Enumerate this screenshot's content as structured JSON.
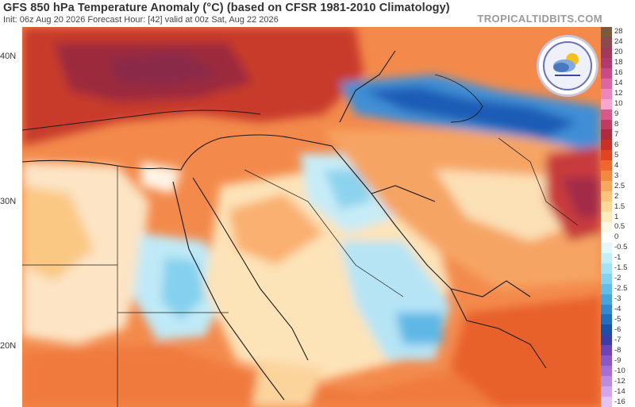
{
  "header": {
    "title": "GFS 850 hPa Temperature Anomaly (°C) (based on CFSR 1981-2010 Climatology)",
    "subtitle": "Init: 06z Aug 20 2026   Forecast Hour: [42]   valid at 00z Sat, Aug 22 2026",
    "brand": "TROPICALTIDBITS.COM"
  },
  "lat_labels": [
    "40N",
    "30N",
    "20N"
  ],
  "colorbar": {
    "items": [
      {
        "label": "28",
        "color": "#7a5a3c"
      },
      {
        "label": "24",
        "color": "#8a4a50"
      },
      {
        "label": "20",
        "color": "#9e3a5c"
      },
      {
        "label": "18",
        "color": "#b03a70"
      },
      {
        "label": "16",
        "color": "#c94a86"
      },
      {
        "label": "14",
        "color": "#dc66a0"
      },
      {
        "label": "12",
        "color": "#ef86bb"
      },
      {
        "label": "10",
        "color": "#f6a6cf"
      },
      {
        "label": "9",
        "color": "#d85a88"
      },
      {
        "label": "8",
        "color": "#c23a5e"
      },
      {
        "label": "7",
        "color": "#b02a3e"
      },
      {
        "label": "6",
        "color": "#c83028"
      },
      {
        "label": "5",
        "color": "#e04420"
      },
      {
        "label": "4",
        "color": "#f0662c"
      },
      {
        "label": "3",
        "color": "#f48840"
      },
      {
        "label": "2.5",
        "color": "#f8a85c"
      },
      {
        "label": "2",
        "color": "#fbc47c"
      },
      {
        "label": "1.5",
        "color": "#fdda9c"
      },
      {
        "label": "1",
        "color": "#feecbe"
      },
      {
        "label": "0.5",
        "color": "#fff8e4"
      },
      {
        "label": "0",
        "color": "#ffffff"
      },
      {
        "label": "-0.5",
        "color": "#e4f8fc"
      },
      {
        "label": "-1",
        "color": "#c4eef8"
      },
      {
        "label": "-1.5",
        "color": "#a4e2f4"
      },
      {
        "label": "-2",
        "color": "#84d2f0"
      },
      {
        "label": "-2.5",
        "color": "#64bce8"
      },
      {
        "label": "-3",
        "color": "#48a4dc"
      },
      {
        "label": "-4",
        "color": "#3488d0"
      },
      {
        "label": "-5",
        "color": "#246cc0"
      },
      {
        "label": "-6",
        "color": "#1a50a8"
      },
      {
        "label": "-7",
        "color": "#3a3ca8"
      },
      {
        "label": "-8",
        "color": "#6a44b8"
      },
      {
        "label": "-9",
        "color": "#8a58c8"
      },
      {
        "label": "-10",
        "color": "#a470d4"
      },
      {
        "label": "-12",
        "color": "#bc8ae0"
      },
      {
        "label": "-14",
        "color": "#d2a6ea"
      },
      {
        "label": "-16",
        "color": "#e2c4f2"
      }
    ]
  },
  "icons": {
    "logo": "tropical-tidbits-logo-icon"
  }
}
